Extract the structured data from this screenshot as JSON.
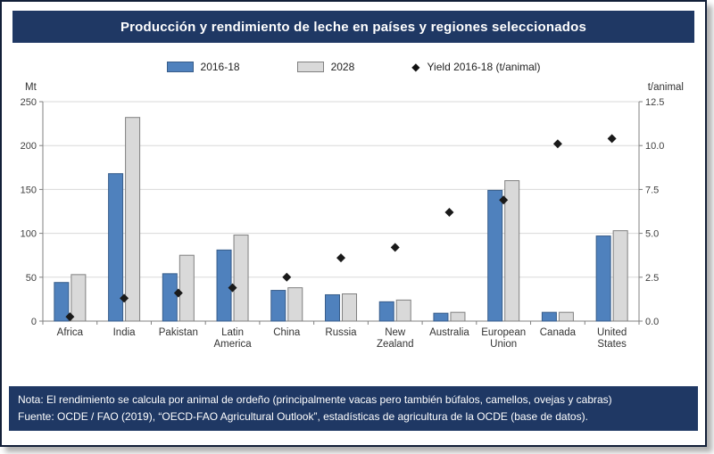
{
  "header": {
    "title": "Producción y rendimiento de leche en países y regiones seleccionados"
  },
  "legend": {
    "items": [
      {
        "label": "2016-18",
        "swatch": "blue-bar",
        "color": "#4f81bd"
      },
      {
        "label": "2028",
        "swatch": "gray-bar",
        "color": "#d9d9d9"
      },
      {
        "label": "Yield 2016-18 (t/animal)",
        "swatch": "black-diamond",
        "color": "#111111"
      }
    ]
  },
  "axes": {
    "left_unit": "Mt",
    "right_unit": "t/animal"
  },
  "chart_data": {
    "type": "bar",
    "title": "Producción y rendimiento de leche en países y regiones seleccionados",
    "categories": [
      "Africa",
      "India",
      "Pakistan",
      "Latin America",
      "China",
      "Russia",
      "New Zealand",
      "Australia",
      "European Union",
      "Canada",
      "United States"
    ],
    "series": [
      {
        "name": "2016-18",
        "type": "bar",
        "axis": "left",
        "color": "#4f81bd",
        "border": "#385d8a",
        "values": [
          44,
          168,
          54,
          81,
          35,
          30,
          22,
          9,
          149,
          10,
          97
        ]
      },
      {
        "name": "2028",
        "type": "bar",
        "axis": "left",
        "color": "#d9d9d9",
        "border": "#808080",
        "values": [
          53,
          232,
          75,
          98,
          38,
          31,
          24,
          10,
          160,
          10,
          103
        ]
      },
      {
        "name": "Yield 2016-18 (t/animal)",
        "type": "scatter",
        "axis": "right",
        "color": "#1a1a1a",
        "values": [
          0.25,
          1.3,
          1.6,
          1.9,
          2.5,
          3.6,
          4.2,
          6.2,
          6.9,
          10.1,
          10.4
        ]
      }
    ],
    "left_axis": {
      "label": "Mt",
      "min": 0,
      "max": 250,
      "step": 50,
      "tick_labels": [
        "0",
        "50",
        "100",
        "150",
        "200",
        "250"
      ]
    },
    "right_axis": {
      "label": "t/animal",
      "min": 0,
      "max": 12.5,
      "step": 2.5,
      "tick_labels": [
        "0.0",
        "2.5",
        "5.0",
        "7.5",
        "10.0",
        "12.5"
      ]
    },
    "grid": true,
    "legend_position": "top"
  },
  "footer": {
    "note": "Nota: El rendimiento se calcula por animal de ordeño (principalmente vacas pero también búfalos, camellos, ovejas y cabras)",
    "source": "Fuente: OCDE / FAO (2019), “OECD-FAO Agricultural Outlook”, estadísticas de agricultura de la OCDE (base de datos)."
  }
}
